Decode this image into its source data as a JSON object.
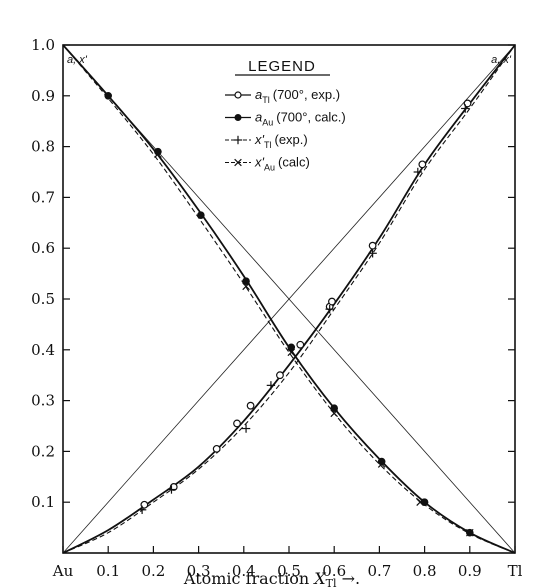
{
  "chart_data": {
    "type": "line",
    "title": "",
    "xlabel": "Atomic fraction X_Tl →.",
    "xlabel_parts": {
      "main": "Atomic fraction ",
      "var": "X",
      "sub": "Tl",
      "tail": " →."
    },
    "ylabel": "",
    "xlim": [
      0,
      1
    ],
    "ylim": [
      0,
      1
    ],
    "x_ticks": [
      {
        "value": 0,
        "label": "Au"
      },
      {
        "value": 0.1,
        "label": "0.1"
      },
      {
        "value": 0.2,
        "label": "0.2"
      },
      {
        "value": 0.3,
        "label": "0.3"
      },
      {
        "value": 0.4,
        "label": "0.4"
      },
      {
        "value": 0.5,
        "label": "0.5"
      },
      {
        "value": 0.6,
        "label": "0.6"
      },
      {
        "value": 0.7,
        "label": "0.7"
      },
      {
        "value": 0.8,
        "label": "0.8"
      },
      {
        "value": 0.9,
        "label": "0.9"
      },
      {
        "value": 1.0,
        "label": "Tl"
      }
    ],
    "y_ticks": [
      {
        "value": 0.1,
        "label": "0.1"
      },
      {
        "value": 0.2,
        "label": "0.2"
      },
      {
        "value": 0.3,
        "label": "0.3"
      },
      {
        "value": 0.4,
        "label": "0.4"
      },
      {
        "value": 0.5,
        "label": "0.5"
      },
      {
        "value": 0.6,
        "label": "0.6"
      },
      {
        "value": 0.7,
        "label": "0.7"
      },
      {
        "value": 0.8,
        "label": "0.8"
      },
      {
        "value": 0.9,
        "label": "0.9"
      },
      {
        "value": 1.0,
        "label": "1.0"
      }
    ],
    "corner_labels": {
      "left": "a, x'",
      "right": "a, x'"
    },
    "legend": {
      "title": "LEGEND",
      "position": "top-center",
      "entries": [
        {
          "sym": "a",
          "sub": "Tl",
          "text": "(700°, exp.)",
          "marker": "open-circle",
          "line": "solid"
        },
        {
          "sym": "a",
          "sub": "Au",
          "text": "(700°, calc.)",
          "marker": "filled-circle",
          "line": "solid"
        },
        {
          "sym": "x'",
          "sub": "Tl",
          "text": "(exp.)",
          "marker": "plus",
          "line": "dashed"
        },
        {
          "sym": "x'",
          "sub": "Au",
          "text": "(calc)",
          "marker": "cross",
          "line": "dashed"
        }
      ]
    },
    "reference_lines": [
      {
        "name": "ideal-Tl",
        "x": [
          0,
          1
        ],
        "y": [
          0,
          1
        ]
      },
      {
        "name": "ideal-Au",
        "x": [
          0,
          1
        ],
        "y": [
          1,
          0
        ]
      }
    ],
    "series": [
      {
        "name": "a_Tl (700°, exp.)",
        "key": "a_tl",
        "marker": "open-circle",
        "line": "solid",
        "x": [
          0.18,
          0.245,
          0.34,
          0.385,
          0.415,
          0.48,
          0.525,
          0.59,
          0.595,
          0.685,
          0.795,
          0.895
        ],
        "y": [
          0.095,
          0.13,
          0.205,
          0.255,
          0.29,
          0.35,
          0.41,
          0.485,
          0.495,
          0.605,
          0.765,
          0.885
        ],
        "curve_x": [
          0,
          0.1,
          0.2,
          0.3,
          0.4,
          0.5,
          0.6,
          0.7,
          0.8,
          0.9,
          1.0
        ],
        "curve_y": [
          0,
          0.045,
          0.105,
          0.17,
          0.26,
          0.37,
          0.49,
          0.62,
          0.765,
          0.885,
          1.0
        ]
      },
      {
        "name": "a_Au (700°, calc.)",
        "key": "a_au",
        "marker": "filled-circle",
        "line": "solid",
        "x": [
          0.1,
          0.21,
          0.305,
          0.405,
          0.505,
          0.6,
          0.705,
          0.8,
          0.9
        ],
        "y": [
          0.9,
          0.79,
          0.665,
          0.535,
          0.405,
          0.285,
          0.18,
          0.1,
          0.04
        ],
        "curve_x": [
          0,
          0.1,
          0.2,
          0.3,
          0.4,
          0.5,
          0.6,
          0.7,
          0.8,
          0.9,
          1.0
        ],
        "curve_y": [
          1.0,
          0.9,
          0.795,
          0.675,
          0.545,
          0.405,
          0.285,
          0.185,
          0.1,
          0.04,
          0
        ]
      },
      {
        "name": "x'_Tl (exp.)",
        "key": "x_tl",
        "marker": "plus",
        "line": "dashed",
        "x": [
          0.175,
          0.24,
          0.405,
          0.46,
          0.59,
          0.685,
          0.785,
          0.89
        ],
        "y": [
          0.085,
          0.125,
          0.245,
          0.33,
          0.48,
          0.59,
          0.75,
          0.875
        ],
        "curve_x": [
          0,
          0.1,
          0.2,
          0.3,
          0.4,
          0.5,
          0.6,
          0.7,
          0.8,
          0.9,
          1.0
        ],
        "curve_y": [
          0,
          0.04,
          0.1,
          0.165,
          0.25,
          0.355,
          0.48,
          0.61,
          0.755,
          0.875,
          1.0
        ]
      },
      {
        "name": "x'_Au (calc)",
        "key": "x_au",
        "marker": "cross",
        "line": "dashed",
        "x": [
          0.21,
          0.405,
          0.505,
          0.6,
          0.705,
          0.79,
          0.9
        ],
        "y": [
          0.785,
          0.525,
          0.395,
          0.275,
          0.175,
          0.1,
          0.04
        ],
        "curve_x": [
          0,
          0.1,
          0.2,
          0.3,
          0.4,
          0.5,
          0.6,
          0.7,
          0.8,
          0.9,
          1.0
        ],
        "curve_y": [
          1.0,
          0.895,
          0.785,
          0.66,
          0.53,
          0.395,
          0.275,
          0.175,
          0.095,
          0.038,
          0
        ]
      }
    ]
  }
}
